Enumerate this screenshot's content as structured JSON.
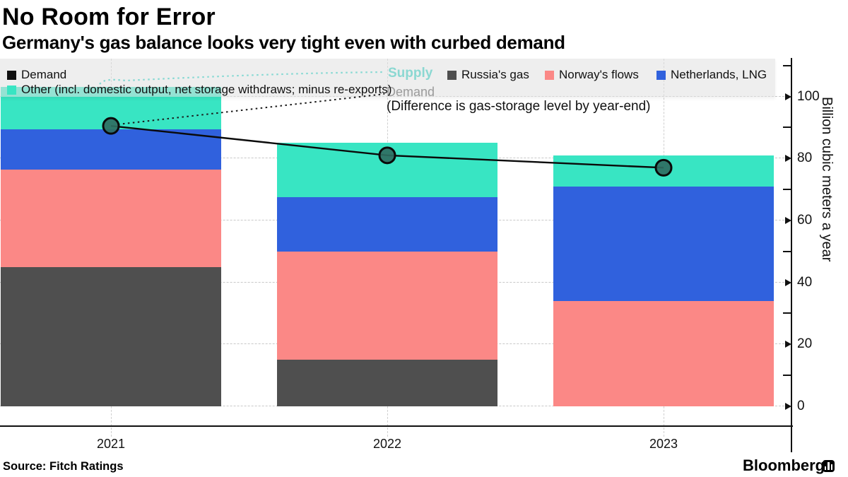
{
  "header": {
    "title": "No Room for Error",
    "subtitle": "Germany's gas balance looks very tight even with curbed demand"
  },
  "legend": {
    "left_items": [
      {
        "label": "Demand",
        "color": "#111111"
      },
      {
        "label": "Other (incl. domestic output, net storage withdraws; minus re-exports)",
        "color": "#38E5C3"
      }
    ],
    "right_items": [
      {
        "label": "Russia's gas",
        "color": "#4F4F4F"
      },
      {
        "label": "Norway's flows",
        "color": "#FB8886"
      },
      {
        "label": "Netherlands, LNG",
        "color": "#3061DD"
      }
    ]
  },
  "annotations": {
    "supply_label": "Supply",
    "demand_label": "Demand",
    "note": "(Difference is gas-storage level by year-end)",
    "supply_label_color": "#8BD8D2",
    "demand_label_color": "#9B9B9B"
  },
  "chart_data": {
    "type": "bar",
    "stacked": true,
    "title": "No Room for Error",
    "subtitle": "Germany's gas balance looks very tight even with curbed demand",
    "categories": [
      "2021",
      "2022",
      "2023"
    ],
    "series": [
      {
        "name": "Russia's gas",
        "color": "#4F4F4F",
        "values": [
          45,
          15,
          0
        ]
      },
      {
        "name": "Norway's flows",
        "color": "#FB8886",
        "values": [
          31.5,
          35,
          34
        ]
      },
      {
        "name": "Netherlands, LNG",
        "color": "#3061DD",
        "values": [
          13,
          17.5,
          37
        ]
      },
      {
        "name": "Other (incl. domestic output, net storage withdraws; minus re-exports)",
        "color": "#38E5C3",
        "values": [
          13.5,
          17.5,
          10
        ]
      }
    ],
    "supply_totals": [
      103,
      85,
      81
    ],
    "line_series": {
      "name": "Demand",
      "color": "#0A0A0A",
      "marker_fill": "#2F6E62",
      "values": [
        90.5,
        81,
        77
      ]
    },
    "xlabel": "",
    "ylabel": "Billion cubic meters a year",
    "ylim": [
      0,
      112
    ],
    "yticks": [
      0,
      20,
      40,
      60,
      80,
      100
    ],
    "yticks_minor": [
      10,
      30,
      50,
      70,
      90,
      110
    ],
    "grid": "horizontal-dashed",
    "legend_position": "top",
    "axis_side": "right"
  },
  "footer": {
    "source": "Source: Fitch Ratings",
    "brand": "Bloomberg"
  }
}
